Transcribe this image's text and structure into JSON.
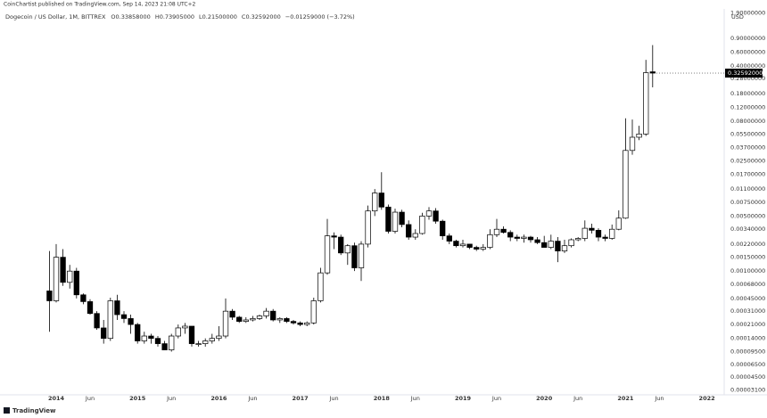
{
  "header": {
    "publisher": "CoinChartist published on TradingView.com, Sep 14, 2023 21:08 UTC+2",
    "footer": "TradingView"
  },
  "chart_data": {
    "type": "candlestick",
    "symbol": "Dogecoin / US Dollar, 1M, BITTREX",
    "legend_values": [
      "O0.33858000",
      "H0.73905000",
      "L0.21500000",
      "C0.32592000",
      "−0.01259000 (−3.72%)"
    ],
    "y_axis_label": "USD",
    "log_scale": true,
    "grid": false,
    "up_color": "#ffffff",
    "down_color": "#000000",
    "border_color": "#000000",
    "ylim": [
      2.69e-05,
      2.76
    ],
    "yticks": [
      {
        "value": 1.9,
        "label": "1.90000000"
      },
      {
        "value": 0.9,
        "label": "0.90000000"
      },
      {
        "value": 0.6,
        "label": "0.60000000"
      },
      {
        "value": 0.4,
        "label": "0.40000000"
      },
      {
        "value": 0.28,
        "label": "0.28000000"
      },
      {
        "value": 0.18,
        "label": "0.18000000"
      },
      {
        "value": 0.12,
        "label": "0.12000000"
      },
      {
        "value": 0.08,
        "label": "0.08000000"
      },
      {
        "value": 0.055,
        "label": "0.05500000"
      },
      {
        "value": 0.037,
        "label": "0.03700000"
      },
      {
        "value": 0.025,
        "label": "0.02500000"
      },
      {
        "value": 0.017,
        "label": "0.01700000"
      },
      {
        "value": 0.011,
        "label": "0.01100000"
      },
      {
        "value": 0.0075,
        "label": "0.00750000"
      },
      {
        "value": 0.005,
        "label": "0.00500000"
      },
      {
        "value": 0.0034,
        "label": "0.00340000"
      },
      {
        "value": 0.0022,
        "label": "0.00220000"
      },
      {
        "value": 0.0015,
        "label": "0.00150000"
      },
      {
        "value": 0.001,
        "label": "0.00100000"
      },
      {
        "value": 0.00068,
        "label": "0.00068000"
      },
      {
        "value": 0.00045,
        "label": "0.00045000"
      },
      {
        "value": 0.00031,
        "label": "0.00031000"
      },
      {
        "value": 0.00021,
        "label": "0.00021000"
      },
      {
        "value": 0.00014,
        "label": "0.00014000"
      },
      {
        "value": 9.5e-05,
        "label": "0.00009500"
      },
      {
        "value": 6.5e-05,
        "label": "0.00006500"
      },
      {
        "value": 4.5e-05,
        "label": "0.00004500"
      },
      {
        "value": 3.1e-05,
        "label": "0.00003100"
      }
    ],
    "last_price": {
      "value": 0.32592,
      "label": "0.32592000"
    },
    "categories": [
      null,
      "2014",
      null,
      null,
      null,
      null,
      "Jun",
      null,
      null,
      null,
      null,
      null,
      null,
      "2015",
      null,
      null,
      null,
      null,
      "Jun",
      null,
      null,
      null,
      null,
      null,
      null,
      "2016",
      null,
      null,
      null,
      null,
      "Jun",
      null,
      null,
      null,
      null,
      null,
      null,
      "2017",
      null,
      null,
      null,
      null,
      "Jun",
      null,
      null,
      null,
      null,
      null,
      null,
      "2018",
      null,
      null,
      null,
      null,
      "Jun",
      null,
      null,
      null,
      null,
      null,
      null,
      "2019",
      null,
      null,
      null,
      null,
      "Jun",
      null,
      null,
      null,
      null,
      null,
      null,
      "2020",
      null,
      null,
      null,
      null,
      "Jun",
      null,
      null,
      null,
      null,
      null,
      null,
      "2021",
      null,
      null,
      null,
      null,
      "Jun",
      null,
      null,
      null,
      null,
      null,
      null,
      "2022"
    ],
    "open": [
      0.00056,
      0.00042,
      0.0015,
      0.00072,
      0.001,
      0.0005,
      0.00041,
      0.00029,
      0.00019,
      0.00014,
      0.00042,
      0.00028,
      0.00025,
      0.00021,
      0.00013,
      0.00015,
      0.00014,
      0.00012,
      0.0001,
      0.00015,
      0.00019,
      0.0002,
      0.00012,
      0.00012,
      0.00013,
      0.00014,
      0.00015,
      0.00031,
      0.00026,
      0.00023,
      0.00024,
      0.00025,
      0.00027,
      0.00031,
      0.00024,
      0.00025,
      0.00023,
      0.00022,
      0.00021,
      0.00022,
      0.00042,
      0.00095,
      0.0028,
      0.0027,
      0.0017,
      0.0021,
      0.0011,
      0.0022,
      0.0058,
      0.0098,
      0.0065,
      0.0032,
      0.0056,
      0.0039,
      0.0027,
      0.003,
      0.005,
      0.0058,
      0.0043,
      0.0028,
      0.0024,
      0.0021,
      0.0022,
      0.002,
      0.0019,
      0.002,
      0.0029,
      0.0034,
      0.0031,
      0.0027,
      0.0026,
      0.0027,
      0.0025,
      0.0023,
      0.002,
      0.0024,
      0.0018,
      0.0021,
      0.0025,
      0.0026,
      0.0035,
      0.0033,
      0.0027,
      0.0026,
      0.0034,
      0.0047,
      0.034,
      0.05,
      0.055,
      0.33858,
      null,
      null,
      null,
      null,
      null,
      null,
      null,
      null
    ],
    "high": [
      0.0018,
      0.0022,
      0.0019,
      0.0012,
      0.0011,
      0.00052,
      0.00044,
      0.00031,
      0.00024,
      0.00046,
      0.0005,
      0.00031,
      0.00028,
      0.00022,
      0.00017,
      0.00016,
      0.00015,
      0.00013,
      0.00016,
      0.00021,
      0.00022,
      0.0002,
      0.00013,
      0.00014,
      0.00016,
      0.0002,
      0.00045,
      0.00033,
      0.00027,
      0.00026,
      0.00027,
      0.00028,
      0.00034,
      0.00033,
      0.00026,
      0.00026,
      0.00024,
      0.00023,
      0.00023,
      0.00046,
      0.0011,
      0.0046,
      0.0031,
      0.0029,
      0.0022,
      0.0023,
      0.0024,
      0.0068,
      0.011,
      0.018,
      0.007,
      0.0062,
      0.006,
      0.0044,
      0.0034,
      0.0055,
      0.0065,
      0.0063,
      0.0045,
      0.003,
      0.0025,
      0.0025,
      0.0022,
      0.0021,
      0.0022,
      0.0034,
      0.0046,
      0.0037,
      0.0033,
      0.0029,
      0.0029,
      0.0028,
      0.0027,
      0.0028,
      0.0029,
      0.0027,
      0.0025,
      0.0026,
      0.0027,
      0.0044,
      0.004,
      0.0035,
      0.0029,
      0.0039,
      0.0059,
      0.087,
      0.084,
      0.07,
      0.48,
      0.73905,
      null,
      null,
      null,
      null,
      null,
      null,
      null,
      null
    ],
    "low": [
      0.00017,
      0.0004,
      0.00065,
      0.0006,
      0.00045,
      0.00038,
      0.00028,
      0.00018,
      0.00012,
      0.00013,
      0.00024,
      0.00022,
      0.00016,
      0.00012,
      0.00012,
      0.00012,
      0.00011,
      0.0001,
      9.5e-05,
      0.00014,
      0.00016,
      0.00011,
      0.00011,
      0.00011,
      0.00012,
      0.00013,
      0.00014,
      0.00024,
      0.00022,
      0.00022,
      0.00023,
      0.00024,
      0.00025,
      0.00023,
      0.00022,
      0.00022,
      0.00021,
      0.0002,
      0.0002,
      0.00021,
      0.0004,
      0.0009,
      0.0019,
      0.0016,
      0.0012,
      0.001,
      0.00075,
      0.002,
      0.005,
      0.006,
      0.003,
      0.003,
      0.0036,
      0.0025,
      0.0025,
      0.0029,
      0.0045,
      0.004,
      0.0025,
      0.0022,
      0.002,
      0.002,
      0.0019,
      0.0018,
      0.0018,
      0.0019,
      0.0027,
      0.003,
      0.0024,
      0.0024,
      0.0023,
      0.0023,
      0.0022,
      0.002,
      0.0019,
      0.0013,
      0.0017,
      0.002,
      0.0024,
      0.0024,
      0.003,
      0.0024,
      0.0024,
      0.0025,
      0.0033,
      0.0046,
      0.03,
      0.046,
      0.052,
      0.215,
      null,
      null,
      null,
      null,
      null,
      null,
      null,
      null
    ],
    "close": [
      0.00042,
      0.0015,
      0.00072,
      0.001,
      0.0005,
      0.00041,
      0.00029,
      0.00019,
      0.00014,
      0.00042,
      0.00028,
      0.00025,
      0.00021,
      0.00013,
      0.00015,
      0.00014,
      0.00012,
      0.0001,
      0.00015,
      0.00019,
      0.0002,
      0.00012,
      0.00012,
      0.00013,
      0.00014,
      0.00015,
      0.00031,
      0.00026,
      0.00023,
      0.00024,
      0.00025,
      0.00027,
      0.00031,
      0.00024,
      0.00025,
      0.00023,
      0.00022,
      0.00021,
      0.00022,
      0.00042,
      0.00095,
      0.0028,
      0.0027,
      0.0017,
      0.0021,
      0.0011,
      0.0022,
      0.0058,
      0.0098,
      0.0065,
      0.0032,
      0.0056,
      0.0039,
      0.0027,
      0.003,
      0.005,
      0.0058,
      0.0043,
      0.0028,
      0.0024,
      0.0021,
      0.0022,
      0.002,
      0.0019,
      0.002,
      0.0029,
      0.0034,
      0.0031,
      0.0027,
      0.0026,
      0.0027,
      0.0025,
      0.0023,
      0.002,
      0.0024,
      0.0018,
      0.0021,
      0.0025,
      0.0026,
      0.0035,
      0.0033,
      0.0027,
      0.0026,
      0.0034,
      0.0047,
      0.034,
      0.05,
      0.055,
      0.33,
      0.32592,
      null,
      null,
      null,
      null,
      null,
      null,
      null,
      null
    ]
  }
}
